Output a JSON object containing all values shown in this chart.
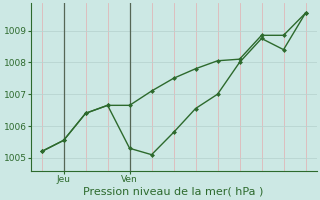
{
  "line1_y": [
    1005.2,
    1005.55,
    1006.4,
    1006.65,
    1005.3,
    1005.1,
    1005.8,
    1006.55,
    1007.0,
    1008.0,
    1008.75,
    1008.4,
    1009.55
  ],
  "line2_y": [
    1005.2,
    1005.55,
    1006.4,
    1006.65,
    1006.65,
    1007.1,
    1007.5,
    1007.8,
    1008.05,
    1008.1,
    1008.85,
    1008.85,
    1009.55
  ],
  "line_color": "#2d6a2d",
  "bg_color": "#cce8e4",
  "grid_color_v": "#e0b8b8",
  "grid_color_h": "#b8d4d0",
  "ylim": [
    1004.6,
    1009.85
  ],
  "yticks": [
    1005,
    1006,
    1007,
    1008,
    1009
  ],
  "n_points": 13,
  "jeu_idx": 1,
  "ven_idx": 4,
  "xlabel": "Pression niveau de la mer( hPa )",
  "xlabel_fontsize": 8,
  "tick_fontsize": 6.5,
  "line_width": 1.0,
  "marker_size": 2.5
}
